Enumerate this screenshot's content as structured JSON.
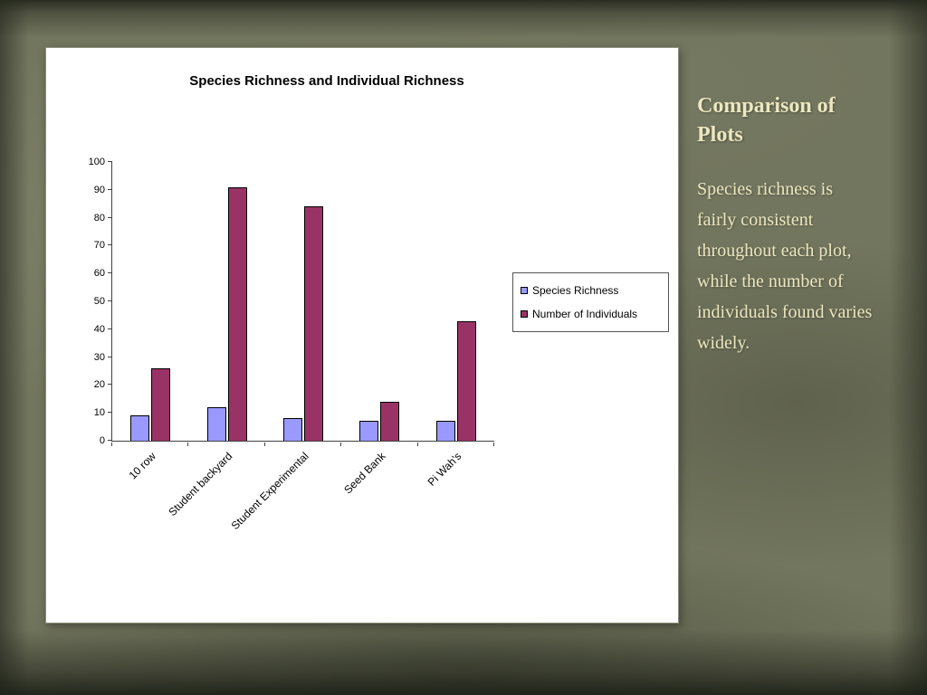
{
  "slide": {
    "background_color": "#73765e",
    "panel_color": "#ffffff"
  },
  "chart_data": {
    "type": "bar",
    "title": "Species Richness and Individual Richness",
    "categories": [
      "10 row",
      "Student backyard",
      "Student Experimental",
      "Seed Bank",
      "Pi Wah's"
    ],
    "series": [
      {
        "name": "Species Richness",
        "color": "#9999ff",
        "values": [
          9,
          12,
          8,
          7,
          7
        ]
      },
      {
        "name": "Number of Individuals",
        "color": "#993366",
        "values": [
          26,
          91,
          84,
          14,
          43
        ]
      }
    ],
    "xlabel": "",
    "ylabel": "",
    "ylim": [
      0,
      100
    ],
    "ytick_step": 10,
    "grid": false,
    "legend_position": "right"
  },
  "side_panel": {
    "title": "Comparison of Plots",
    "body": "Species richness is fairly consistent throughout each plot, while the number of individuals found varies widely.",
    "text_color": "#ebe7c0"
  }
}
